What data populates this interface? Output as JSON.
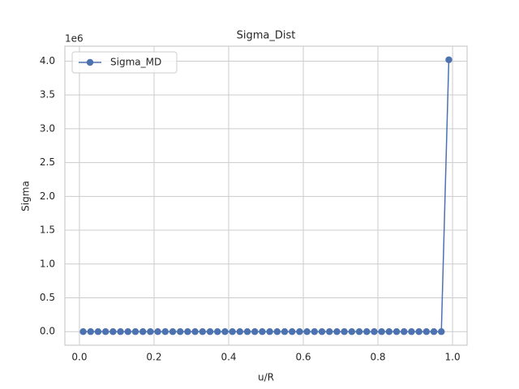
{
  "chart_data": {
    "type": "line",
    "title": "Sigma_Dist",
    "x_label": "u/R",
    "y_label": "Sigma",
    "y_offset_text": "1e6",
    "x": [
      0.01,
      0.03,
      0.05,
      0.07,
      0.09,
      0.11,
      0.13,
      0.15,
      0.17,
      0.19,
      0.21,
      0.23,
      0.25,
      0.27,
      0.29,
      0.31,
      0.33,
      0.35,
      0.37,
      0.39,
      0.41,
      0.43,
      0.45,
      0.47,
      0.49,
      0.51,
      0.53,
      0.55,
      0.57,
      0.59,
      0.61,
      0.63,
      0.65,
      0.67,
      0.69,
      0.71,
      0.73,
      0.75,
      0.77,
      0.79,
      0.81,
      0.83,
      0.85,
      0.87,
      0.89,
      0.91,
      0.93,
      0.95,
      0.97,
      0.99
    ],
    "series": [
      {
        "name": "Sigma_MD",
        "color": "#4c72b0",
        "values": [
          0,
          0,
          0,
          0,
          0,
          0,
          0,
          0,
          0,
          0,
          0,
          0,
          0,
          0,
          0,
          0,
          0,
          0,
          0,
          0,
          0,
          0,
          0,
          0,
          0,
          0,
          0,
          0,
          0,
          0,
          0,
          0,
          0,
          0,
          0,
          0,
          0,
          0,
          0,
          0,
          0,
          0,
          0,
          0,
          0,
          0,
          0,
          0,
          0,
          4020000
        ]
      }
    ],
    "xlim": [
      -0.039,
      1.039
    ],
    "xticks": [
      {
        "value": 0,
        "label": "0.0"
      },
      0.2,
      0.4,
      0.6,
      0.8,
      {
        "value": 1,
        "label": "1.0"
      }
    ],
    "ylim": [
      -201000,
      4221000
    ],
    "yticks": [
      {
        "value": 0,
        "label": "0.0"
      },
      {
        "value": 500000,
        "label": "0.5"
      },
      {
        "value": 1000000,
        "label": "1.0"
      },
      {
        "value": 1500000,
        "label": "1.5"
      },
      {
        "value": 2000000,
        "label": "2.0"
      },
      {
        "value": 2500000,
        "label": "2.5"
      },
      {
        "value": 3000000,
        "label": "3.0"
      },
      {
        "value": 3500000,
        "label": "3.5"
      },
      {
        "value": 4000000,
        "label": "4.0"
      }
    ],
    "grid": true,
    "legend": "upper left"
  }
}
